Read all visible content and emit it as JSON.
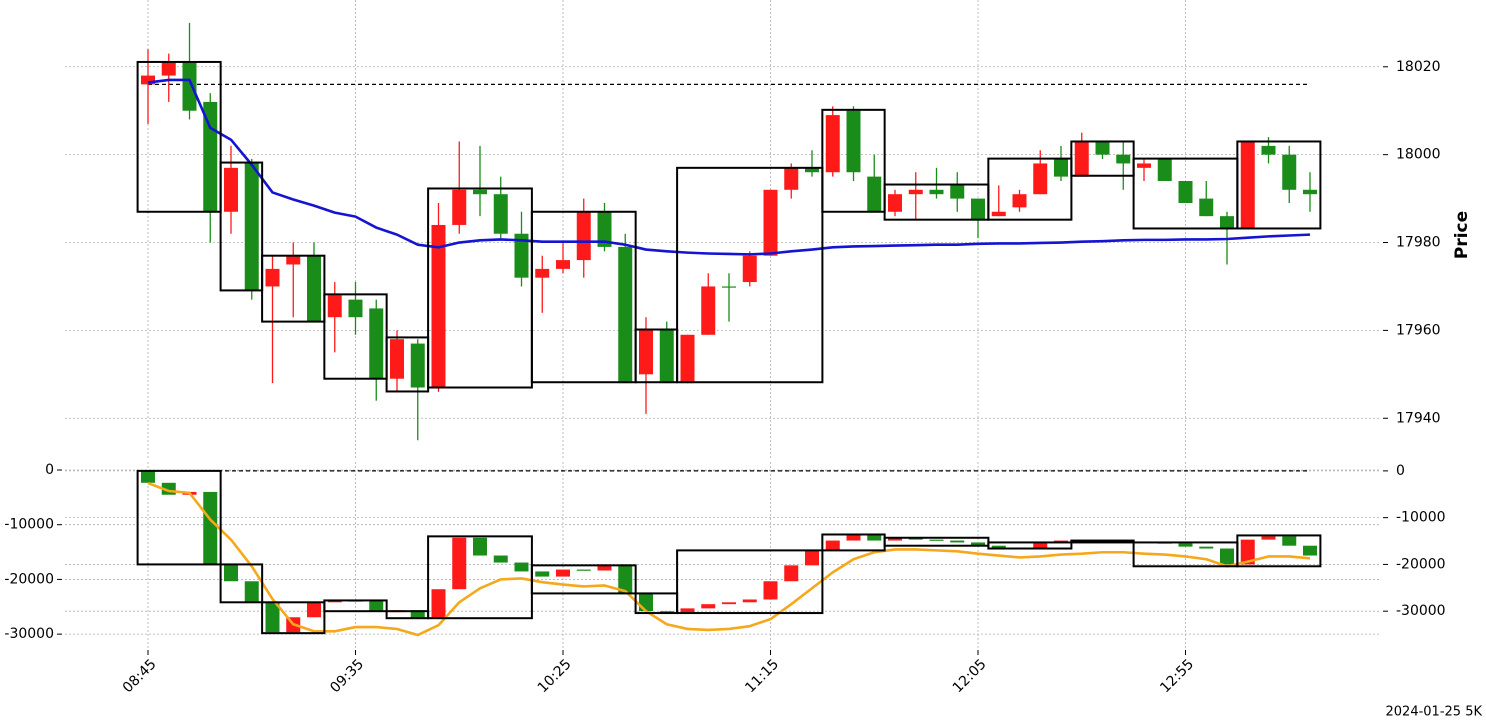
{
  "footer": "2024-01-25 5K",
  "chart_data": [
    {
      "type": "candlestick",
      "ylabel": "Price",
      "yaxis_side": "right",
      "grid": true,
      "ylim": [
        17930.5,
        18035.2
      ],
      "yticks": [
        17940,
        17960,
        17980,
        18000,
        18020
      ],
      "up_color": "#ff1a1a",
      "down_color": "#1a8c1a",
      "candles": {
        "open": [
          18016,
          18018,
          18021,
          18012,
          17987,
          17998,
          17970,
          17975,
          17977,
          17963,
          17967,
          17965,
          17949,
          17957,
          17947,
          17984,
          17992,
          17991,
          17982,
          17972,
          17974,
          17976,
          17987,
          17979,
          17950,
          17960,
          17948,
          17959,
          17970,
          17971,
          17977,
          17992,
          17997,
          17996,
          18010,
          17995,
          17987,
          17991,
          17992,
          17993,
          17990,
          17986,
          17988,
          17991,
          17999,
          17995,
          18003,
          18000,
          17997,
          17999,
          17994,
          17990,
          17986,
          17983,
          18002,
          18000,
          17992
        ],
        "high": [
          18024,
          18023,
          18030,
          18014,
          18002,
          17999,
          17977,
          17980,
          17980,
          17971,
          17971,
          17967,
          17960,
          17958,
          17989,
          18003,
          18002,
          17995,
          17987,
          17977,
          17980,
          17990,
          17989,
          17982,
          17963,
          17962,
          17959,
          17973,
          17973,
          17978,
          17992,
          17998,
          18001,
          18011,
          18011,
          18000,
          17992,
          17996,
          17997,
          17996,
          17990,
          17993,
          17992,
          18001,
          18002,
          18005,
          18003,
          18003,
          17999,
          17999,
          17994,
          17994,
          17987,
          18003,
          18004,
          18002,
          17996
        ],
        "low": [
          18007,
          18012,
          18008,
          17980,
          17982,
          17967,
          17948,
          17963,
          17962,
          17955,
          17959,
          17944,
          17946,
          17935,
          17946,
          17982,
          17986,
          17981,
          17970,
          17964,
          17973,
          17972,
          17978,
          17948,
          17941,
          17948,
          17948,
          17959,
          17962,
          17970,
          17977,
          17990,
          17995,
          17995,
          17994,
          17987,
          17986,
          17985,
          17990,
          17987,
          17981,
          17986,
          17987,
          17991,
          17994,
          17995,
          17999,
          17992,
          17994,
          17994,
          17989,
          17986,
          17975,
          17983,
          17998,
          17989,
          17987
        ],
        "close": [
          18018,
          18021,
          18010,
          17987,
          17997,
          17969,
          17974,
          17977,
          17962,
          17968,
          17963,
          17949,
          17958,
          17947,
          17984,
          17992,
          17991,
          17982,
          17972,
          17974,
          17976,
          17987,
          17979,
          17948,
          17960,
          17948,
          17959,
          17970,
          17970,
          17977,
          17992,
          17997,
          17996,
          18009,
          17996,
          17987,
          17991,
          17992,
          17991,
          17990,
          17985,
          17987,
          17991,
          17998,
          17995,
          18003,
          18000,
          17998,
          17998,
          17994,
          17989,
          17986,
          17983,
          18003,
          18000,
          17992,
          17991
        ]
      },
      "series": [
        {
          "color": "#1414d2",
          "values": [
            18016.4,
            18017,
            18017,
            18006.1,
            18003.4,
            17997.7,
            17991.4,
            17989.8,
            17988.4,
            17986.8,
            17985.9,
            17983.4,
            17981.8,
            17979.5,
            17978.9,
            17980,
            17980.5,
            17980.7,
            17980.5,
            17980.2,
            17980.2,
            17980.2,
            17980.2,
            17979.5,
            17978.4,
            17978,
            17977.7,
            17977.5,
            17977.4,
            17977.3,
            17977.5,
            17978,
            17978.4,
            17978.9,
            17979.1,
            17979.2,
            17979.3,
            17979.4,
            17979.5,
            17979.5,
            17979.7,
            17979.8,
            17979.8,
            17979.9,
            17980,
            17980.2,
            17980.3,
            17980.5,
            17980.6,
            17980.6,
            17980.7,
            17980.7,
            17980.8,
            17981.1,
            17981.4,
            17981.6,
            17981.8
          ]
        }
      ],
      "reference_line": 18016,
      "boxes": [
        {
          "start": 0,
          "end": 3,
          "top": 18021.1,
          "bottom": 17987
        },
        {
          "start": 4,
          "end": 5,
          "top": 17998.2,
          "bottom": 17969.1
        },
        {
          "start": 6,
          "end": 8,
          "top": 17977,
          "bottom": 17962
        },
        {
          "start": 9,
          "end": 11,
          "top": 17968.2,
          "bottom": 17949
        },
        {
          "start": 12,
          "end": 13,
          "top": 17958.4,
          "bottom": 17946.1
        },
        {
          "start": 14,
          "end": 18,
          "top": 17992.3,
          "bottom": 17947
        },
        {
          "start": 19,
          "end": 23,
          "top": 17987,
          "bottom": 17948.2
        },
        {
          "start": 24,
          "end": 25,
          "top": 17960.2,
          "bottom": 17948.2
        },
        {
          "start": 26,
          "end": 32,
          "top": 17997,
          "bottom": 17948.2
        },
        {
          "start": 33,
          "end": 35,
          "top": 18010.2,
          "bottom": 17987
        },
        {
          "start": 36,
          "end": 40,
          "top": 17993.2,
          "bottom": 17985.2
        },
        {
          "start": 41,
          "end": 44,
          "top": 17999.1,
          "bottom": 17985.2
        },
        {
          "start": 45,
          "end": 47,
          "top": 18003,
          "bottom": 17995.2
        },
        {
          "start": 48,
          "end": 52,
          "top": 17999.1,
          "bottom": 17983.2
        },
        {
          "start": 53,
          "end": 56,
          "top": 18003,
          "bottom": 17983.2
        }
      ]
    },
    {
      "type": "candlestick",
      "yaxis_side": "left",
      "grid": true,
      "data_axis": "y2",
      "ylim": [
        -32900,
        1460
      ],
      "yticks": [
        -30000,
        -20000,
        -10000,
        0
      ],
      "y2lim": [
        -38300,
        1900
      ],
      "y2ticks": [
        -30000,
        -20000,
        -10000,
        0
      ],
      "up_color": "#ff1a1a",
      "down_color": "#1a8c1a",
      "categories": [
        "08:45",
        null,
        null,
        null,
        null,
        null,
        null,
        null,
        null,
        null,
        "09:35",
        null,
        null,
        null,
        null,
        null,
        null,
        null,
        null,
        null,
        "10:25",
        null,
        null,
        null,
        null,
        null,
        null,
        null,
        null,
        null,
        "11:15",
        null,
        null,
        null,
        null,
        null,
        null,
        null,
        null,
        null,
        "12:05",
        null,
        null,
        null,
        null,
        null,
        null,
        null,
        null,
        null,
        "12:55",
        null,
        null,
        null,
        null,
        null,
        null
      ],
      "candles": {
        "open": [
          0,
          -2550,
          -5100,
          -4500,
          -20000,
          -23600,
          -28100,
          -34500,
          -31300,
          -28100,
          -27900,
          -27700,
          -30200,
          -29800,
          -31500,
          -25300,
          -14300,
          -18100,
          -19600,
          -21500,
          -22600,
          -21100,
          -21300,
          -20000,
          -26200,
          -30000,
          -30200,
          -29400,
          -28500,
          -28100,
          -27500,
          -23600,
          -20200,
          -17000,
          -14900,
          -13800,
          -14900,
          -14300,
          -14700,
          -14900,
          -15300,
          -16000,
          -16400,
          -16600,
          -15300,
          -14900,
          -15100,
          -14900,
          -15100,
          -15300,
          -15500,
          -16200,
          -16600,
          -20000,
          -14700,
          -14000,
          -16000
        ],
        "close": [
          -2550,
          -5100,
          -4500,
          -20000,
          -23600,
          -28100,
          -34500,
          -31300,
          -28100,
          -27700,
          -27700,
          -30000,
          -29800,
          -31500,
          -25300,
          -14300,
          -18100,
          -19600,
          -21500,
          -22600,
          -21100,
          -21300,
          -20000,
          -26200,
          -30000,
          -30200,
          -29400,
          -28500,
          -28100,
          -27500,
          -23600,
          -20200,
          -17000,
          -14900,
          -13800,
          -14900,
          -14300,
          -14700,
          -14900,
          -15300,
          -16000,
          -16400,
          -16600,
          -15300,
          -14900,
          -15100,
          -14900,
          -15100,
          -15300,
          -15500,
          -16200,
          -16600,
          -20000,
          -14700,
          -14000,
          -16000,
          -18100
        ]
      },
      "series": [
        {
          "color": "#f5a81c",
          "axis": "y2",
          "values": [
            -2600,
            -4300,
            -4700,
            -10400,
            -14700,
            -20400,
            -27400,
            -32800,
            -34300,
            -34300,
            -33400,
            -33400,
            -33800,
            -35100,
            -33000,
            -28100,
            -25100,
            -23200,
            -23000,
            -23800,
            -24300,
            -24700,
            -24500,
            -25700,
            -30000,
            -32800,
            -33800,
            -34000,
            -33800,
            -33200,
            -31700,
            -28500,
            -25100,
            -21700,
            -18900,
            -17400,
            -16800,
            -16800,
            -17000,
            -17200,
            -17700,
            -18100,
            -18500,
            -18300,
            -17900,
            -17700,
            -17400,
            -17400,
            -17700,
            -17900,
            -18300,
            -18900,
            -20400,
            -19400,
            -18300,
            -18300,
            -18700
          ]
        }
      ],
      "reference_line": 0,
      "boxes": [
        {
          "start": 0,
          "end": 3,
          "top": 0,
          "bottom": -20000
        },
        {
          "start": 4,
          "end": 5,
          "top": -20000,
          "bottom": -28100
        },
        {
          "start": 6,
          "end": 8,
          "top": -28100,
          "bottom": -34700
        },
        {
          "start": 9,
          "end": 11,
          "top": -27700,
          "bottom": -30000
        },
        {
          "start": 12,
          "end": 13,
          "top": -30000,
          "bottom": -31500
        },
        {
          "start": 14,
          "end": 18,
          "top": -14000,
          "bottom": -31500
        },
        {
          "start": 19,
          "end": 23,
          "top": -20200,
          "bottom": -26200
        },
        {
          "start": 24,
          "end": 25,
          "top": -26200,
          "bottom": -30400
        },
        {
          "start": 26,
          "end": 32,
          "top": -17000,
          "bottom": -30400
        },
        {
          "start": 33,
          "end": 35,
          "top": -13600,
          "bottom": -17000
        },
        {
          "start": 36,
          "end": 40,
          "top": -14300,
          "bottom": -16000
        },
        {
          "start": 41,
          "end": 44,
          "top": -15300,
          "bottom": -16600
        },
        {
          "start": 45,
          "end": 47,
          "top": -14900,
          "bottom": -15300
        },
        {
          "start": 48,
          "end": 52,
          "top": -15300,
          "bottom": -20400
        },
        {
          "start": 53,
          "end": 56,
          "top": -13800,
          "bottom": -20400
        }
      ]
    }
  ]
}
